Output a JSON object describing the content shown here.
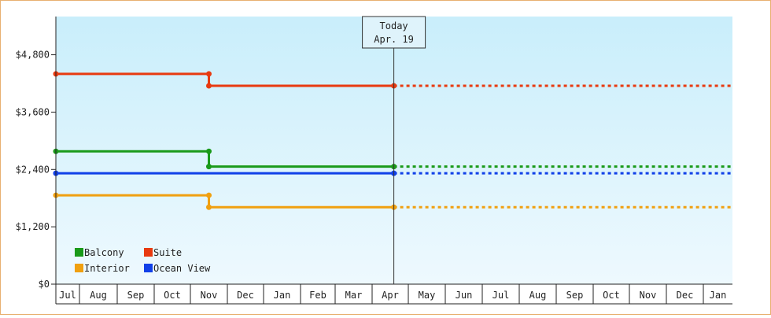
{
  "chart_data": {
    "type": "line",
    "style": "step",
    "title": "",
    "xlabel": "",
    "ylabel": "",
    "y_tick_labels": [
      "$0",
      "$1,200",
      "$2,400",
      "$3,600",
      "$4,800"
    ],
    "y_ticks": [
      0,
      1200,
      2400,
      3600,
      4800
    ],
    "ylim": [
      0,
      5600
    ],
    "x_tick_labels": [
      "Jul",
      "Aug",
      "Sep",
      "Oct",
      "Nov",
      "Dec",
      "Jan",
      "Feb",
      "Mar",
      "Apr",
      "May",
      "Jun",
      "Jul",
      "Aug",
      "Sep",
      "Oct",
      "Nov",
      "Dec",
      "Jan"
    ],
    "grid": false,
    "legend_position": "bottom-left",
    "today": {
      "label": "Today",
      "date": "Apr. 19",
      "month": 9.6
    },
    "series": [
      {
        "name": "Suite",
        "color": "#e83a10",
        "points": [
          {
            "month": 0,
            "value": 4400
          },
          {
            "month": 4.5,
            "value": 4400
          },
          {
            "month": 4.5,
            "value": 4150
          },
          {
            "month": 9.6,
            "value": 4150
          }
        ],
        "forecast_value": 4150
      },
      {
        "name": "Balcony",
        "color": "#1a9a1a",
        "points": [
          {
            "month": 0,
            "value": 2780
          },
          {
            "month": 4.5,
            "value": 2780
          },
          {
            "month": 4.5,
            "value": 2460
          },
          {
            "month": 9.6,
            "value": 2460
          }
        ],
        "forecast_value": 2460
      },
      {
        "name": "Ocean View",
        "color": "#1040e8",
        "points": [
          {
            "month": 0,
            "value": 2320
          },
          {
            "month": 9.6,
            "value": 2320
          }
        ],
        "forecast_value": 2320
      },
      {
        "name": "Interior",
        "color": "#f0a010",
        "points": [
          {
            "month": 0,
            "value": 1860
          },
          {
            "month": 4.5,
            "value": 1860
          },
          {
            "month": 4.5,
            "value": 1610
          },
          {
            "month": 9.6,
            "value": 1610
          }
        ],
        "forecast_value": 1610
      }
    ],
    "legend": [
      {
        "name": "Balcony",
        "color": "#1a9a1a"
      },
      {
        "name": "Suite",
        "color": "#e83a10"
      },
      {
        "name": "Interior",
        "color": "#f0a010"
      },
      {
        "name": "Ocean View",
        "color": "#1040e8"
      }
    ]
  }
}
